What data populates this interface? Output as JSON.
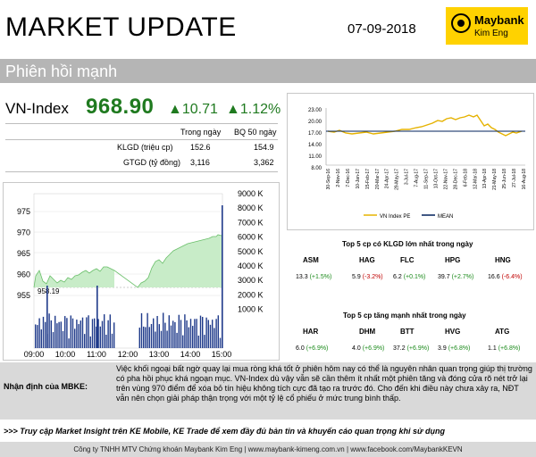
{
  "header": {
    "title": "MARKET UPDATE",
    "date": "07-09-2018",
    "logo_brand": "Maybank",
    "logo_sub": "Kim Eng"
  },
  "subtitle": "Phiên hồi mạnh",
  "index": {
    "name": "VN-Index",
    "value": "968.90",
    "change": "10.71",
    "pct": "1.12%",
    "color": "#1f7a1f"
  },
  "stats": {
    "col_today": "Trong ngày",
    "col_avg": "BQ 50 ngày",
    "rows": [
      {
        "label": "KLGD (triệu cp)",
        "today": "152.6",
        "avg": "154.9"
      },
      {
        "label": "GTGD (tỷ đồng)",
        "today": "3,116",
        "avg": "3,362"
      }
    ]
  },
  "pe_chart": {
    "yticks": [
      "23.00",
      "20.00",
      "17.00",
      "14.00",
      "11.00",
      "8.00"
    ],
    "xticks": [
      "30-Sep-16",
      "2-Nov-16",
      "7-Dec-16",
      "10-Jan-17",
      "15-Feb-17",
      "20-Mar-17",
      "24-Apr-17",
      "29-May-17",
      "3-Jul-17",
      "7-Aug-17",
      "11-Sep-17",
      "13-Oct-17",
      "22-Nov-17",
      "28-Dec-17",
      "6-Feb-18",
      "12-Mar-18",
      "13-Apr-18",
      "21-May-18",
      "25-Jun-18",
      "27-Jul-18",
      "16-Aug-18"
    ],
    "legend": [
      "VN Index PE",
      "MEAN"
    ]
  },
  "intraday": {
    "price_ticks": [
      "975",
      "970",
      "965",
      "960",
      "955"
    ],
    "volume_ticks": [
      "9000 K",
      "8000 K",
      "7000 K",
      "6000 K",
      "5000 K",
      "4000 K",
      "3000 K",
      "2000 K",
      "1000 K"
    ],
    "time_ticks": [
      "09:00",
      "10:00",
      "11:00",
      "12:00",
      "13:00",
      "14:00",
      "15:00"
    ],
    "ref_label": "958.19"
  },
  "top_volume": {
    "title": "Top 5 cp có KLGD lớn nhất trong ngày",
    "items": [
      {
        "code": "ASM",
        "value": "13.3",
        "change": "(+1.5%)",
        "color": "#1a8a1a"
      },
      {
        "code": "HAG",
        "value": "5.9",
        "change": "(-3.2%)",
        "color": "#c00000"
      },
      {
        "code": "FLC",
        "value": "6.2",
        "change": "(+0.1%)",
        "color": "#1a8a1a"
      },
      {
        "code": "HPG",
        "value": "39.7",
        "change": "(+2.7%)",
        "color": "#1a8a1a"
      },
      {
        "code": "HNG",
        "value": "16.6",
        "change": "(-6.4%)",
        "color": "#c00000"
      }
    ]
  },
  "top_gainers": {
    "title": "Top 5 cp tăng mạnh nhất trong ngày",
    "items": [
      {
        "code": "HAR",
        "value": "6.0",
        "change": "(+6.9%)"
      },
      {
        "code": "DHM",
        "value": "4.0",
        "change": "(+6.9%)"
      },
      {
        "code": "BTT",
        "value": "37.2",
        "change": "(+6.9%)"
      },
      {
        "code": "HVG",
        "value": "3.9",
        "change": "(+6.8%)"
      },
      {
        "code": "ATG",
        "value": "1.1",
        "change": "(+6.8%)"
      }
    ]
  },
  "commentary": {
    "label": "Nhận định của MBKE:",
    "text": "Việc khối ngoại bất ngờ quay lại mua ròng khá tốt ở phiên hôm nay có thể là nguyên nhân quan trọng giúp thị trường có pha hồi phục khá ngoạn mục. VN-Index dù vậy vẫn sẽ cần thêm ít nhất một phiên tăng và đóng cửa rõ nét trở lại trên vùng 970 điểm để xóa bỏ tín hiệu không tích cực đã tạo ra trước đó. Cho đến khi điều này chưa xảy ra, NĐT vẫn nên chọn giải pháp thận trọng với một tỷ lệ cổ phiếu ở mức trung bình thấp."
  },
  "notice": ">>> Truy cập Market Insight trên KE Mobile, KE Trade để xem đầy đủ bản tin và khuyến cáo quan trọng khi sử dụng",
  "footer": "Công ty TNHH MTV Chứng khoán Maybank Kim Eng | www.maybank-kimeng.com.vn | www.facebook.com/MaybankKEVN"
}
